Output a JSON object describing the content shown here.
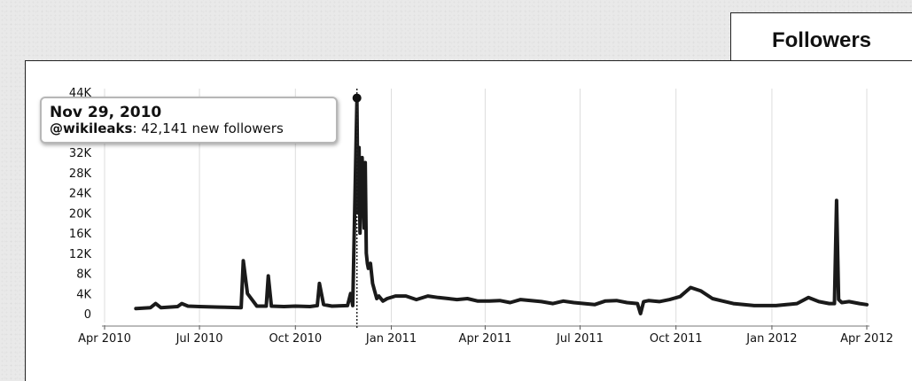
{
  "header": {
    "title": "Followers"
  },
  "tooltip": {
    "date": "Nov 29, 2010",
    "user": "@wikileaks",
    "text": ": 42,141 new followers"
  },
  "chart_data": {
    "type": "line",
    "title": "Followers",
    "xlabel": "",
    "ylabel": "",
    "x_ticks": [
      "Apr 2010",
      "Jul 2010",
      "Oct 2010",
      "Jan 2011",
      "Apr 2011",
      "Jul 2011",
      "Oct 2011",
      "Jan 2012",
      "Apr 2012"
    ],
    "y_ticks": [
      "0",
      "4K",
      "8K",
      "12K",
      "16K",
      "20K",
      "24K",
      "28K",
      "32K",
      "36K",
      "40K",
      "44K"
    ],
    "ylim": [
      0,
      44000
    ],
    "xlim": [
      "2010-04-01",
      "2012-04-01"
    ],
    "grid": "vertical",
    "line_color": "#1a1a1a",
    "highlight": {
      "date": "2010-11-29",
      "value": 42141
    },
    "series": [
      {
        "x": [
          "2010-05-01",
          "2010-05-15",
          "2010-05-20",
          "2010-05-25",
          "2010-06-10",
          "2010-06-14",
          "2010-06-20",
          "2010-07-01",
          "2010-07-20",
          "2010-08-10",
          "2010-08-12",
          "2010-08-16",
          "2010-08-25",
          "2010-09-03",
          "2010-09-05",
          "2010-09-08",
          "2010-09-20",
          "2010-10-01",
          "2010-10-15",
          "2010-10-22",
          "2010-10-24",
          "2010-10-28",
          "2010-11-05",
          "2010-11-20",
          "2010-11-23",
          "2010-11-25",
          "2010-11-29",
          "2010-11-30",
          "2010-12-01",
          "2010-12-02",
          "2010-12-03",
          "2010-12-04",
          "2010-12-05",
          "2010-12-06",
          "2010-12-07",
          "2010-12-08",
          "2010-12-09",
          "2010-12-10",
          "2010-12-12",
          "2010-12-14",
          "2010-12-16",
          "2010-12-18",
          "2010-12-20",
          "2010-12-24",
          "2010-12-28",
          "2011-01-05",
          "2011-01-15",
          "2011-01-25",
          "2011-02-05",
          "2011-02-15",
          "2011-02-25",
          "2011-03-05",
          "2011-03-15",
          "2011-03-25",
          "2011-04-05",
          "2011-04-15",
          "2011-04-25",
          "2011-05-05",
          "2011-05-15",
          "2011-05-25",
          "2011-06-05",
          "2011-06-15",
          "2011-06-25",
          "2011-07-05",
          "2011-07-15",
          "2011-07-25",
          "2011-08-05",
          "2011-08-15",
          "2011-08-25",
          "2011-08-28",
          "2011-08-31",
          "2011-09-05",
          "2011-09-15",
          "2011-09-25",
          "2011-10-05",
          "2011-10-15",
          "2011-10-25",
          "2011-11-05",
          "2011-11-15",
          "2011-11-25",
          "2011-12-05",
          "2011-12-15",
          "2011-12-25",
          "2012-01-05",
          "2012-01-15",
          "2012-01-25",
          "2012-02-05",
          "2012-02-15",
          "2012-02-25",
          "2012-03-01",
          "2012-03-03",
          "2012-03-05",
          "2012-03-08",
          "2012-03-15",
          "2012-03-25",
          "2012-04-01"
        ],
        "values": [
          1000,
          1200,
          2000,
          1200,
          1400,
          2000,
          1500,
          1400,
          1300,
          1200,
          10500,
          4000,
          1500,
          1500,
          7500,
          1500,
          1400,
          1500,
          1400,
          1600,
          6000,
          1800,
          1500,
          1600,
          4000,
          1600,
          42141,
          20000,
          33000,
          16000,
          26000,
          31000,
          24000,
          17000,
          30000,
          12000,
          10000,
          9000,
          10000,
          6000,
          4500,
          3000,
          3500,
          2500,
          3000,
          3500,
          3500,
          2800,
          3500,
          3200,
          3000,
          2800,
          3000,
          2500,
          2500,
          2600,
          2200,
          2800,
          2600,
          2400,
          2000,
          2500,
          2200,
          2000,
          1800,
          2500,
          2600,
          2200,
          2000,
          0,
          2400,
          2600,
          2400,
          2800,
          3400,
          5200,
          4500,
          3000,
          2500,
          2000,
          1800,
          1600,
          1600,
          1600,
          1800,
          2000,
          3200,
          2400,
          2000,
          2000,
          22500,
          2800,
          2200,
          2400,
          2000,
          1800
        ]
      }
    ]
  }
}
